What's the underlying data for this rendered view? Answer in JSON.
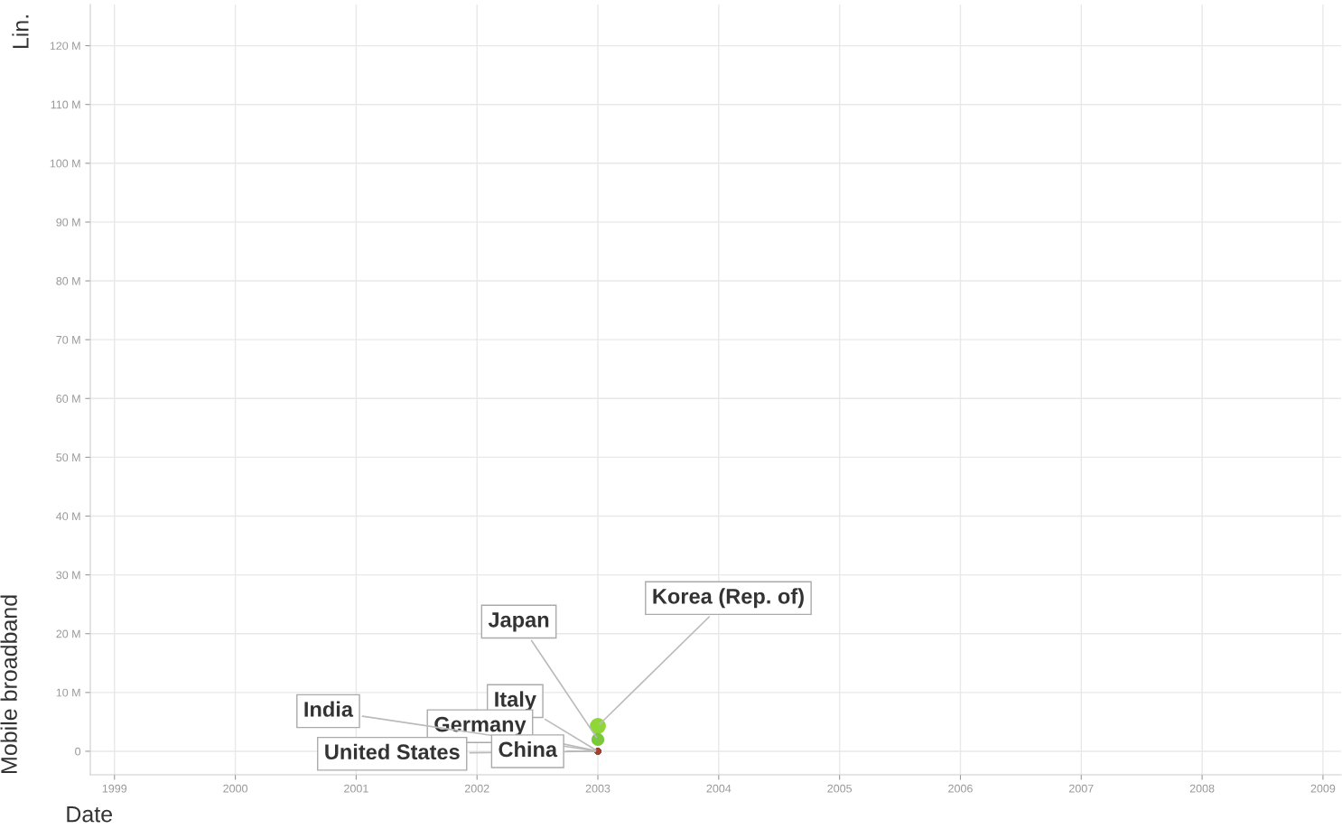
{
  "chart_data": {
    "type": "scatter",
    "xlabel": "Date",
    "ylabel": "Mobile broadband",
    "annotations": [
      "Lin."
    ],
    "xlim": [
      1998.8,
      2009.15
    ],
    "xticks": [
      1999,
      2000,
      2001,
      2002,
      2003,
      2004,
      2005,
      2006,
      2007,
      2008,
      2009
    ],
    "ylim": [
      -4,
      127
    ],
    "yticks": [
      {
        "value": 0,
        "label": "0"
      },
      {
        "value": 10,
        "label": "10 M"
      },
      {
        "value": 20,
        "label": "20 M"
      },
      {
        "value": 30,
        "label": "30 M"
      },
      {
        "value": 40,
        "label": "40 M"
      },
      {
        "value": 50,
        "label": "50 M"
      },
      {
        "value": 60,
        "label": "60 M"
      },
      {
        "value": 70,
        "label": "70 M"
      },
      {
        "value": 80,
        "label": "80 M"
      },
      {
        "value": 90,
        "label": "90 M"
      },
      {
        "value": 100,
        "label": "100 M"
      },
      {
        "value": 110,
        "label": "110 M"
      },
      {
        "value": 120,
        "label": "120 M"
      }
    ],
    "grid": true,
    "marker": "circle",
    "x": [
      2003
    ],
    "series": [
      {
        "name": "Korea (Rep. of)",
        "color": "#8fd636",
        "values": [
          4.3
        ]
      },
      {
        "name": "Japan",
        "color": "#79c93a",
        "values": [
          2.0
        ]
      },
      {
        "name": "Italy",
        "color": "#a0422e",
        "values": [
          0
        ]
      },
      {
        "name": "Germany",
        "color": "#a0422e",
        "values": [
          0
        ]
      },
      {
        "name": "India",
        "color": "#a0422e",
        "values": [
          0
        ]
      },
      {
        "name": "United States",
        "color": "#a0422e",
        "values": [
          0
        ]
      },
      {
        "name": "China",
        "color": "#a0422e",
        "values": [
          0
        ]
      }
    ]
  }
}
